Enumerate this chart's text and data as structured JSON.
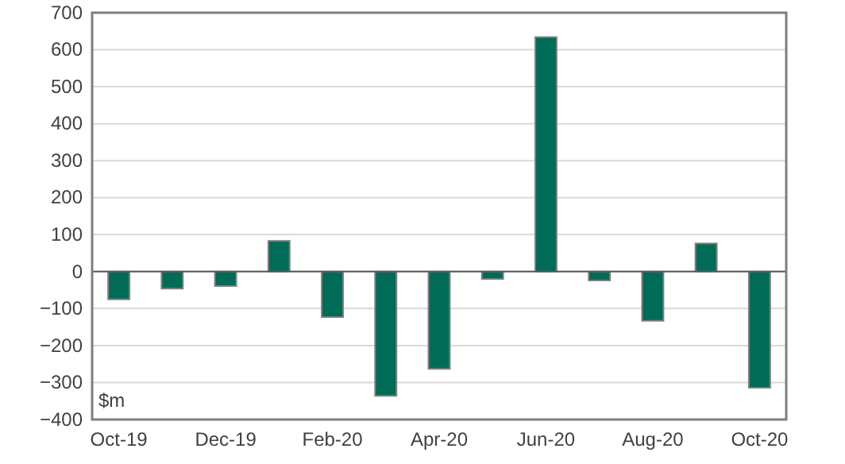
{
  "chart_data": {
    "type": "bar",
    "ylabel": "$m",
    "categories": [
      "Oct-19",
      null,
      "Dec-19",
      null,
      "Feb-20",
      null,
      "Apr-20",
      null,
      "Jun-20",
      null,
      "Aug-20",
      null,
      "Oct-20"
    ],
    "values": [
      -75,
      -46,
      -39,
      83,
      -123,
      -336,
      -263,
      -20,
      634,
      -24,
      -133,
      76,
      -314
    ],
    "color": "#006b57",
    "ylim": [
      -400,
      700
    ],
    "yticks": [
      -400,
      -300,
      -200,
      -100,
      0,
      100,
      200,
      300,
      400,
      500,
      600,
      700
    ],
    "grid": "y"
  }
}
